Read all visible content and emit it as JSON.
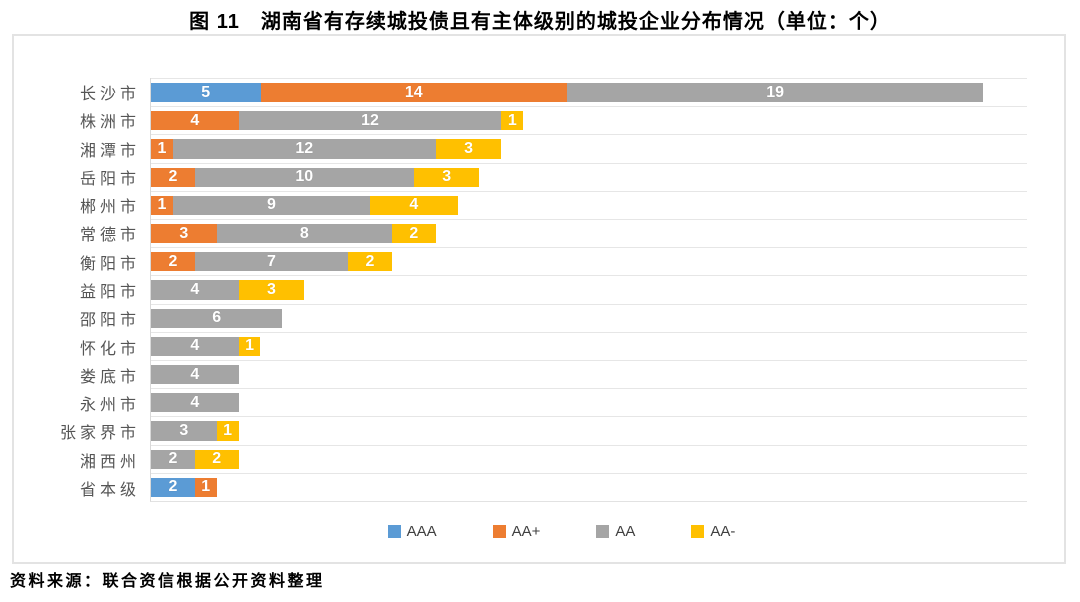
{
  "title": "图 11　湖南省有存续城投债且有主体级别的城投企业分布情况（单位：个）",
  "source_note": "资料来源：联合资信根据公开资料整理",
  "chart_data": {
    "type": "bar",
    "orientation": "horizontal",
    "stacked": true,
    "title": "图 11　湖南省有存续城投债且有主体级别的城投企业分布情况（单位：个）",
    "xlabel": "",
    "ylabel": "",
    "xlim": [
      0,
      40
    ],
    "grid": "category-separator-lines",
    "legend_position": "bottom",
    "data_labels": "white-bold-centered",
    "categories": [
      "长沙市",
      "株洲市",
      "湘潭市",
      "岳阳市",
      "郴州市",
      "常德市",
      "衡阳市",
      "益阳市",
      "邵阳市",
      "怀化市",
      "娄底市",
      "永州市",
      "张家界市",
      "湘西州",
      "省本级"
    ],
    "series": [
      {
        "name": "AAA",
        "color": "#5B9BD5",
        "values": [
          5,
          0,
          0,
          0,
          0,
          0,
          0,
          0,
          0,
          0,
          0,
          0,
          0,
          0,
          2
        ]
      },
      {
        "name": "AA+",
        "color": "#ED7D31",
        "values": [
          14,
          4,
          1,
          2,
          1,
          3,
          2,
          0,
          0,
          0,
          0,
          0,
          0,
          0,
          1
        ]
      },
      {
        "name": "AA",
        "color": "#A5A5A5",
        "values": [
          19,
          12,
          12,
          10,
          9,
          8,
          7,
          4,
          6,
          4,
          4,
          4,
          3,
          2,
          0
        ]
      },
      {
        "name": "AA-",
        "color": "#FFC000",
        "values": [
          0,
          1,
          3,
          3,
          4,
          2,
          2,
          3,
          0,
          1,
          0,
          0,
          1,
          2,
          0
        ]
      }
    ],
    "colors": {
      "AAA": "#5B9BD5",
      "AA+": "#ED7D31",
      "AA": "#A5A5A5",
      "AA-": "#FFC000",
      "gridline": "#e6e6e6",
      "box_border": "#e3e3e3",
      "category_text": "#555555"
    }
  }
}
